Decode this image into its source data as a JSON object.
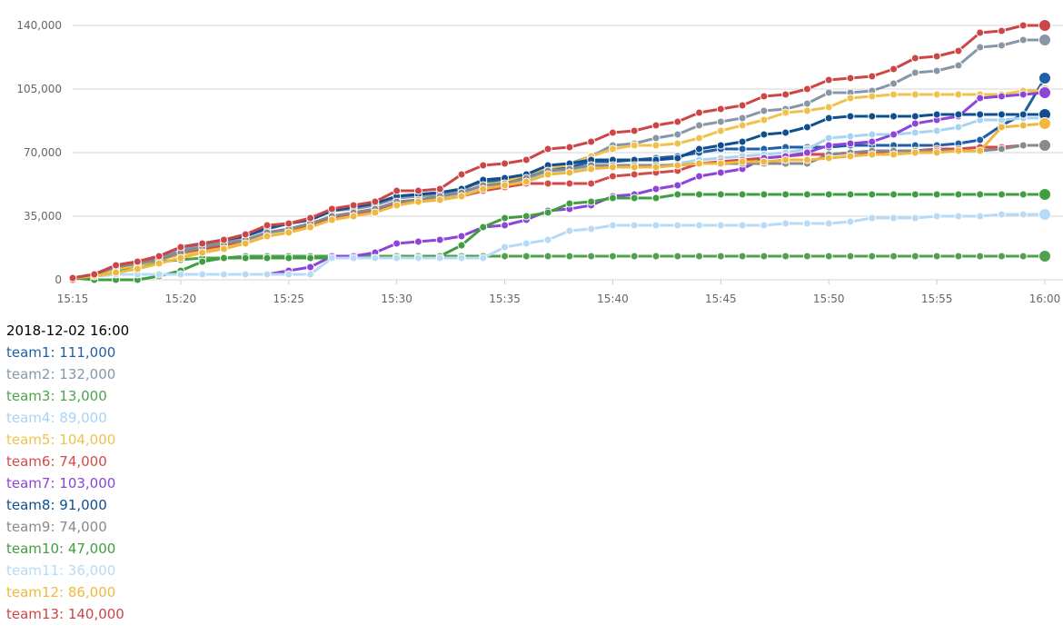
{
  "chart_data": {
    "type": "line",
    "title": "",
    "xlabel": "",
    "ylabel": "",
    "ylim": [
      0,
      140000
    ],
    "y_ticks": [
      0,
      35000,
      70000,
      105000,
      140000
    ],
    "y_tick_labels": [
      "0",
      "35,000",
      "70,000",
      "105,000",
      "140,000"
    ],
    "x_range": [
      "15:15",
      "16:00"
    ],
    "x_tick_labels": [
      "15:15",
      "15:20",
      "15:25",
      "15:30",
      "15:35",
      "15:40",
      "15:45",
      "15:50",
      "15:55",
      "16:00"
    ],
    "grid": "horizontal",
    "x": [
      "15:15",
      "15:16",
      "15:17",
      "15:18",
      "15:19",
      "15:20",
      "15:21",
      "15:22",
      "15:23",
      "15:24",
      "15:25",
      "15:26",
      "15:27",
      "15:28",
      "15:29",
      "15:30",
      "15:31",
      "15:32",
      "15:33",
      "15:34",
      "15:35",
      "15:36",
      "15:37",
      "15:38",
      "15:39",
      "15:40",
      "15:41",
      "15:42",
      "15:43",
      "15:44",
      "15:45",
      "15:46",
      "15:47",
      "15:48",
      "15:49",
      "15:50",
      "15:51",
      "15:52",
      "15:53",
      "15:54",
      "15:55",
      "15:56",
      "15:57",
      "15:58",
      "15:59",
      "16:00"
    ],
    "series": [
      {
        "name": "team1",
        "color": "#1f5fa6",
        "values": [
          1000,
          3000,
          8000,
          10000,
          13000,
          18000,
          20000,
          21000,
          24000,
          28000,
          31000,
          33000,
          38000,
          40000,
          42000,
          46000,
          47000,
          48000,
          50000,
          54000,
          55000,
          56000,
          61000,
          62000,
          65000,
          65000,
          66000,
          67000,
          68000,
          70000,
          72000,
          72000,
          72000,
          73000,
          73000,
          73000,
          74000,
          74000,
          74000,
          74000,
          74000,
          75000,
          77000,
          85000,
          91000,
          111000
        ]
      },
      {
        "name": "team2",
        "color": "#8797a8",
        "values": [
          1000,
          3000,
          7000,
          9000,
          12000,
          16000,
          19000,
          21000,
          24000,
          29000,
          31000,
          33000,
          38000,
          39000,
          41000,
          45000,
          46000,
          47000,
          49000,
          55000,
          56000,
          58000,
          61000,
          64000,
          68000,
          74000,
          75000,
          78000,
          80000,
          85000,
          87000,
          89000,
          93000,
          94000,
          97000,
          103000,
          103000,
          104000,
          108000,
          114000,
          115000,
          118000,
          128000,
          129000,
          132000,
          132000
        ]
      },
      {
        "name": "team3",
        "color": "#4ea24e",
        "values": [
          1000,
          2000,
          5000,
          8000,
          10000,
          11000,
          12000,
          12000,
          13000,
          13000,
          13000,
          13000,
          13000,
          13000,
          13000,
          13000,
          13000,
          13000,
          13000,
          13000,
          13000,
          13000,
          13000,
          13000,
          13000,
          13000,
          13000,
          13000,
          13000,
          13000,
          13000,
          13000,
          13000,
          13000,
          13000,
          13000,
          13000,
          13000,
          13000,
          13000,
          13000,
          13000,
          13000,
          13000,
          13000,
          13000
        ]
      },
      {
        "name": "team4",
        "color": "#a9d3f3",
        "values": [
          1000,
          2000,
          6000,
          8000,
          11000,
          14000,
          16000,
          19000,
          21000,
          26000,
          27000,
          30000,
          34000,
          36000,
          38000,
          42000,
          44000,
          45000,
          47000,
          51000,
          52000,
          55000,
          59000,
          60000,
          62000,
          62000,
          62000,
          62000,
          64000,
          66000,
          67000,
          68000,
          69000,
          70000,
          72000,
          78000,
          79000,
          80000,
          80000,
          81000,
          82000,
          84000,
          88000,
          88000,
          89000,
          89000
        ]
      },
      {
        "name": "team5",
        "color": "#efc24c",
        "values": [
          1000,
          3000,
          6000,
          8000,
          11000,
          14000,
          16000,
          18000,
          20000,
          24000,
          26000,
          30000,
          34000,
          36000,
          38000,
          42000,
          44000,
          46000,
          48000,
          52000,
          54000,
          58000,
          62000,
          63000,
          68000,
          72000,
          74000,
          74000,
          75000,
          78000,
          82000,
          85000,
          88000,
          92000,
          93000,
          95000,
          100000,
          101000,
          102000,
          102000,
          102000,
          102000,
          102000,
          102000,
          104000,
          104000
        ]
      },
      {
        "name": "team6",
        "color": "#d24a4a",
        "values": [
          0,
          3000,
          7000,
          9000,
          11000,
          15000,
          17000,
          19000,
          22000,
          26000,
          28000,
          30000,
          34000,
          36000,
          38000,
          42000,
          43000,
          44000,
          46000,
          49000,
          51000,
          53000,
          53000,
          53000,
          53000,
          57000,
          58000,
          59000,
          60000,
          64000,
          65000,
          66000,
          67000,
          68000,
          69000,
          69000,
          70000,
          70000,
          71000,
          71000,
          72000,
          72000,
          73000,
          73000,
          74000,
          74000
        ]
      },
      {
        "name": "team7",
        "color": "#8c44d9",
        "values": [
          1000,
          2000,
          3000,
          3000,
          3000,
          3000,
          3000,
          3000,
          3000,
          3000,
          5000,
          7000,
          13000,
          13000,
          15000,
          20000,
          21000,
          22000,
          24000,
          29000,
          30000,
          33000,
          38000,
          39000,
          41000,
          46000,
          47000,
          50000,
          52000,
          57000,
          59000,
          61000,
          67000,
          68000,
          70000,
          74000,
          75000,
          76000,
          80000,
          86000,
          88000,
          90000,
          100000,
          101000,
          102000,
          103000
        ]
      },
      {
        "name": "team8",
        "color": "#0f4f8f",
        "values": [
          1000,
          3000,
          8000,
          10000,
          13000,
          18000,
          20000,
          22000,
          24000,
          29000,
          31000,
          33000,
          38000,
          40000,
          42000,
          46000,
          47000,
          48000,
          50000,
          55000,
          56000,
          58000,
          63000,
          64000,
          66000,
          66000,
          66000,
          66000,
          67000,
          72000,
          74000,
          76000,
          80000,
          81000,
          84000,
          89000,
          90000,
          90000,
          90000,
          90000,
          91000,
          91000,
          91000,
          91000,
          91000,
          91000
        ]
      },
      {
        "name": "team9",
        "color": "#8a8a8a",
        "values": [
          1000,
          3000,
          7000,
          9000,
          11000,
          15000,
          18000,
          20000,
          22000,
          26000,
          28000,
          31000,
          35000,
          37000,
          39000,
          43000,
          44000,
          46000,
          48000,
          52000,
          53000,
          56000,
          60000,
          61000,
          63000,
          63000,
          63000,
          63000,
          63000,
          64000,
          64000,
          64000,
          64000,
          64000,
          64000,
          69000,
          70000,
          71000,
          71000,
          71000,
          71000,
          71000,
          71000,
          72000,
          74000,
          74000
        ]
      },
      {
        "name": "team10",
        "color": "#3f9e3f",
        "values": [
          1000,
          0,
          0,
          0,
          2000,
          5000,
          10000,
          12000,
          12000,
          12000,
          12000,
          12000,
          12000,
          12000,
          12000,
          12000,
          12000,
          13000,
          19000,
          29000,
          34000,
          35000,
          37000,
          42000,
          43000,
          45000,
          45000,
          45000,
          47000,
          47000,
          47000,
          47000,
          47000,
          47000,
          47000,
          47000,
          47000,
          47000,
          47000,
          47000,
          47000,
          47000,
          47000,
          47000,
          47000,
          47000
        ]
      },
      {
        "name": "team11",
        "color": "#b7daf6",
        "values": [
          1000,
          2000,
          3000,
          3000,
          3000,
          3000,
          3000,
          3000,
          3000,
          3000,
          3000,
          3000,
          12000,
          12000,
          12000,
          12000,
          12000,
          12000,
          12000,
          12000,
          18000,
          20000,
          22000,
          27000,
          28000,
          30000,
          30000,
          30000,
          30000,
          30000,
          30000,
          30000,
          30000,
          31000,
          31000,
          31000,
          32000,
          34000,
          34000,
          34000,
          35000,
          35000,
          35000,
          36000,
          36000,
          36000
        ]
      },
      {
        "name": "team12",
        "color": "#f0b83c",
        "values": [
          1000,
          2000,
          4000,
          6000,
          9000,
          12000,
          15000,
          17000,
          20000,
          24000,
          26000,
          29000,
          33000,
          35000,
          37000,
          41000,
          43000,
          44000,
          46000,
          50000,
          52000,
          54000,
          58000,
          59000,
          61000,
          62000,
          62000,
          62000,
          63000,
          64000,
          64000,
          65000,
          65000,
          66000,
          66000,
          67000,
          68000,
          69000,
          69000,
          70000,
          70000,
          71000,
          71000,
          84000,
          85000,
          86000
        ]
      },
      {
        "name": "team13",
        "color": "#cd4545",
        "values": [
          1000,
          3000,
          8000,
          10000,
          13000,
          18000,
          20000,
          22000,
          25000,
          30000,
          31000,
          34000,
          39000,
          41000,
          43000,
          49000,
          49000,
          50000,
          58000,
          63000,
          64000,
          66000,
          72000,
          73000,
          76000,
          81000,
          82000,
          85000,
          87000,
          92000,
          94000,
          96000,
          101000,
          102000,
          105000,
          110000,
          111000,
          112000,
          116000,
          122000,
          123000,
          126000,
          136000,
          137000,
          140000,
          140000
        ]
      }
    ]
  },
  "legend": {
    "timestamp": "2018-12-02 16:00",
    "entries": [
      {
        "label": "team1: 111,000",
        "color": "#1f5fa6"
      },
      {
        "label": "team2: 132,000",
        "color": "#8797a8"
      },
      {
        "label": "team3: 13,000",
        "color": "#4ea24e"
      },
      {
        "label": "team4: 89,000",
        "color": "#a9d3f3"
      },
      {
        "label": "team5: 104,000",
        "color": "#efc24c"
      },
      {
        "label": "team6: 74,000",
        "color": "#d24a4a"
      },
      {
        "label": "team7: 103,000",
        "color": "#8c44d9"
      },
      {
        "label": "team8: 91,000",
        "color": "#0f4f8f"
      },
      {
        "label": "team9: 74,000",
        "color": "#8a8a8a"
      },
      {
        "label": "team10: 47,000",
        "color": "#3f9e3f"
      },
      {
        "label": "team11: 36,000",
        "color": "#b7daf6"
      },
      {
        "label": "team12: 86,000",
        "color": "#f0b83c"
      },
      {
        "label": "team13: 140,000",
        "color": "#cd4545"
      }
    ]
  }
}
